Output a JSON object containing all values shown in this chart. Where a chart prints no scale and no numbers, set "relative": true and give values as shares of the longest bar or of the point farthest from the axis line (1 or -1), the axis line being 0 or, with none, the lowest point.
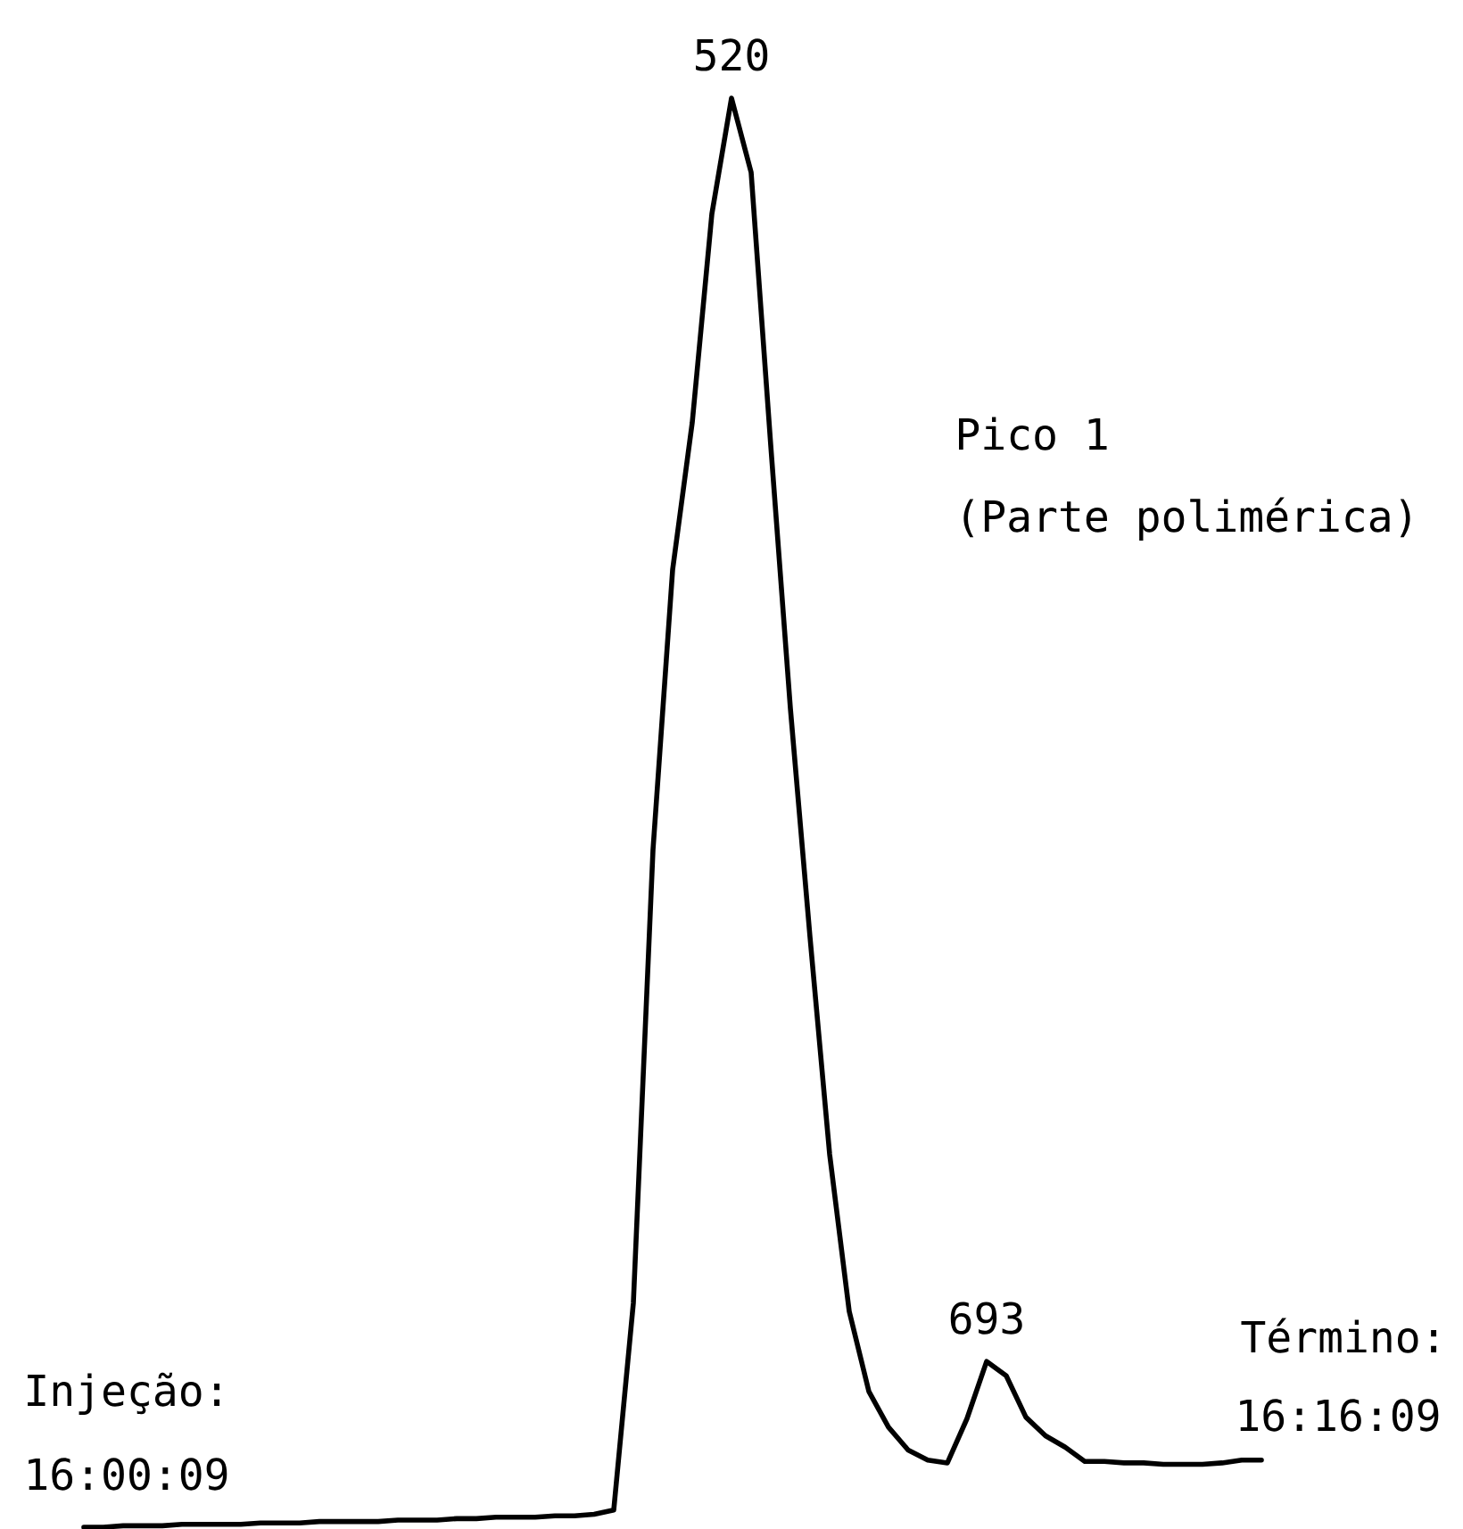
{
  "chart_data": {
    "type": "line",
    "relative": true,
    "color": "#000000",
    "categories": [
      null,
      null,
      null,
      null,
      null,
      null,
      null,
      null,
      null,
      null,
      null,
      null,
      null,
      null,
      null,
      null,
      null,
      null,
      null,
      null,
      null,
      null,
      null,
      null,
      null,
      null,
      null,
      null,
      null,
      null,
      null,
      null,
      null,
      null,
      null,
      null,
      null,
      null,
      null,
      null,
      null,
      null,
      null,
      null,
      null,
      null,
      null,
      null,
      null,
      null,
      null,
      null,
      null,
      null,
      null,
      null,
      null,
      null,
      null,
      null,
      null
    ],
    "values": [
      0,
      0,
      0.001,
      0.001,
      0.001,
      0.002,
      0.002,
      0.002,
      0.002,
      0.003,
      0.003,
      0.003,
      0.004,
      0.004,
      0.004,
      0.004,
      0.005,
      0.005,
      0.005,
      0.006,
      0.006,
      0.007,
      0.007,
      0.007,
      0.008,
      0.008,
      0.009,
      0.012,
      0.157,
      0.474,
      0.67,
      0.773,
      0.919,
      1.0,
      0.948,
      0.757,
      0.573,
      0.413,
      0.261,
      0.151,
      0.095,
      0.07,
      0.054,
      0.047,
      0.045,
      0.076,
      0.116,
      0.106,
      0.077,
      0.064,
      0.056,
      0.046,
      0.046,
      0.045,
      0.045,
      0.044,
      0.044,
      0.044,
      0.045,
      0.047,
      0.047
    ],
    "annotations": [
      {
        "text": "520",
        "y": 1.0
      },
      {
        "text": "693",
        "y": 0.116
      },
      "Pico 1",
      "(Parte polimérica)",
      "Injeção:",
      "16:00:09",
      "Término:",
      "16:16:09"
    ]
  }
}
